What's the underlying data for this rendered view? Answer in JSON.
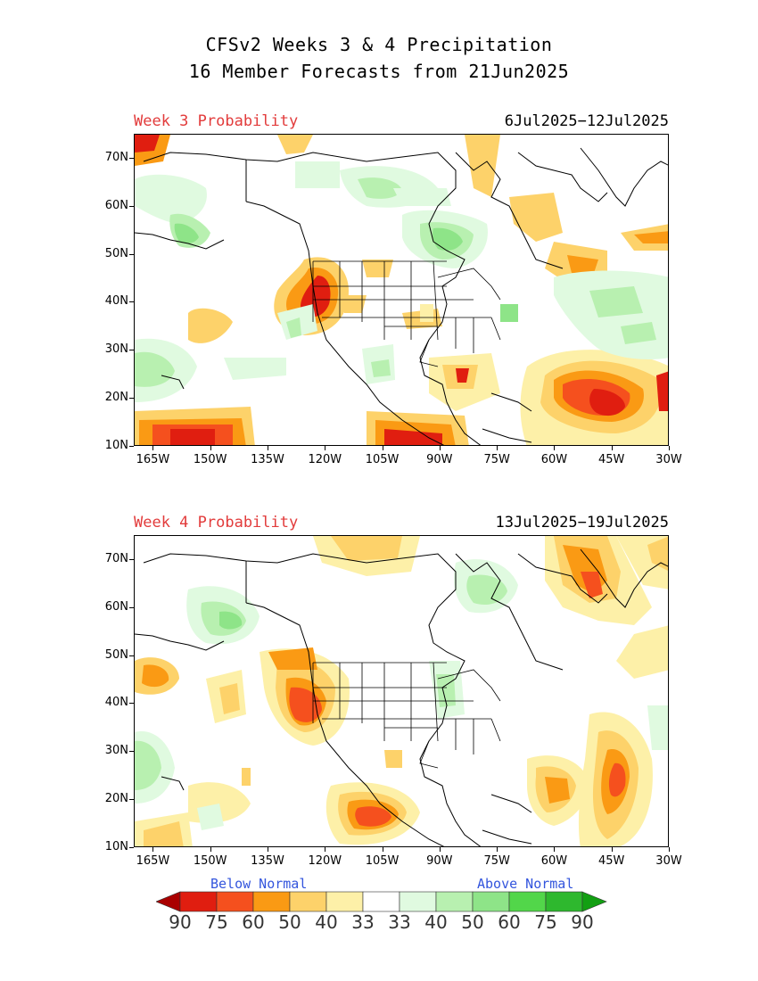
{
  "title": {
    "line1": "CFSv2 Weeks 3 & 4 Precipitation",
    "line2": "16 Member Forecasts from 21Jun2025"
  },
  "panels": [
    {
      "label": "Week 3 Probability",
      "dates": "6Jul2025−12Jul2025"
    },
    {
      "label": "Week 4 Probability",
      "dates": "13Jul2025−19Jul2025"
    }
  ],
  "axes": {
    "lat_labels": [
      "70N",
      "60N",
      "50N",
      "40N",
      "30N",
      "20N",
      "10N"
    ],
    "lat_values": [
      70,
      60,
      50,
      40,
      30,
      20,
      10
    ],
    "lon_labels": [
      "165W",
      "150W",
      "135W",
      "120W",
      "105W",
      "90W",
      "75W",
      "60W",
      "45W",
      "30W"
    ],
    "lon_values": [
      -165,
      -150,
      -135,
      -120,
      -105,
      -90,
      -75,
      -60,
      -45,
      -30
    ],
    "lon_range": [
      -170,
      -30
    ],
    "lat_range": [
      10,
      75
    ]
  },
  "legend": {
    "below_label": "Below Normal",
    "above_label": "Above Normal",
    "numbers": [
      "90",
      "75",
      "60",
      "50",
      "40",
      "33",
      "33",
      "40",
      "50",
      "60",
      "75",
      "90"
    ],
    "colors": [
      "#aa0000",
      "#e01e10",
      "#f5501e",
      "#fa9a14",
      "#fdd26a",
      "#fdf0a8",
      "#ffffff",
      "#e0fae0",
      "#b8f0b0",
      "#8ee488",
      "#52d64a",
      "#2eb82e",
      "#129f12"
    ]
  },
  "colors": {
    "dry": [
      "#fdf0a8",
      "#fdd26a",
      "#fa9a14",
      "#f5501e",
      "#e01e10"
    ],
    "wet": [
      "#e0fae0",
      "#b8f0b0",
      "#8ee488",
      "#52d64a"
    ],
    "label_red": "#e23b3b",
    "label_blue": "#3355dd"
  }
}
